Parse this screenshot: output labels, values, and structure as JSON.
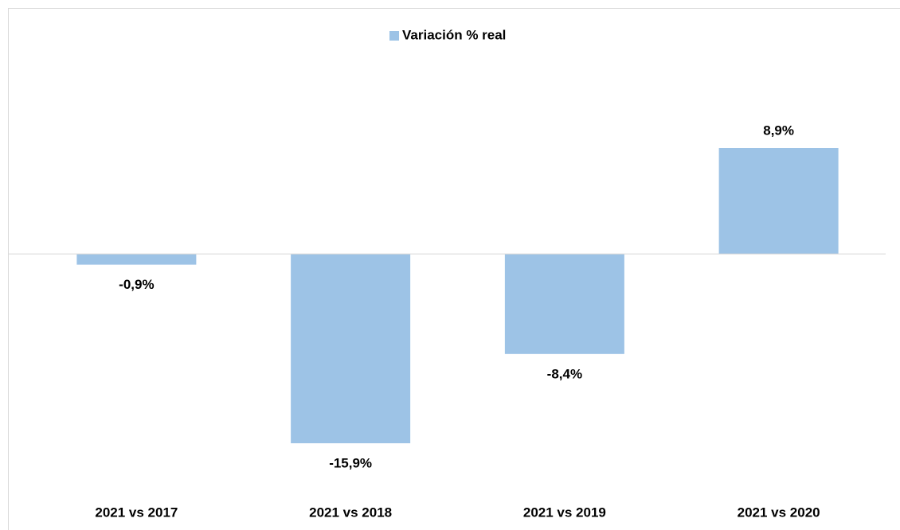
{
  "chart_data": {
    "type": "bar",
    "categories": [
      "2021 vs 2017",
      "2021 vs 2018",
      "2021 vs 2019",
      "2021 vs 2020"
    ],
    "series": [
      {
        "name": "Variación % real",
        "color": "#9dc3e6",
        "values": [
          -0.9,
          -15.9,
          -8.4,
          8.9
        ],
        "value_labels": [
          "-0,9%",
          "-15,9%",
          "-8,4%",
          "8,9%"
        ]
      }
    ],
    "legend": "top",
    "grid": false
  }
}
